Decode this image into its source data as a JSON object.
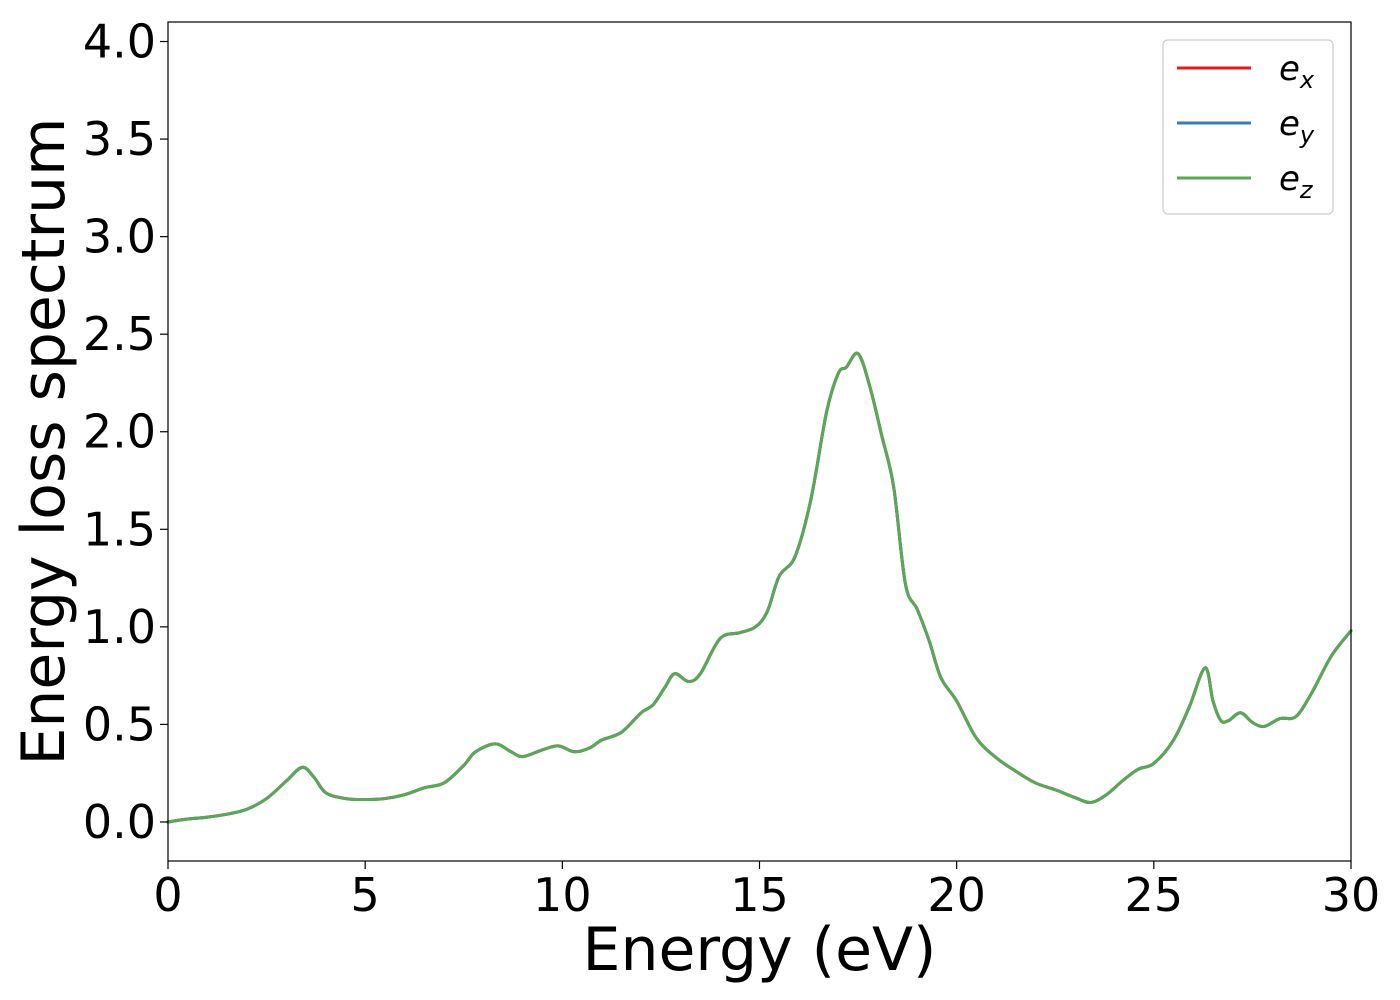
{
  "chart_data": {
    "type": "line",
    "title": "",
    "xlabel": "Energy (eV)",
    "ylabel": "Energy loss spectrum",
    "xlim": [
      0,
      30
    ],
    "ylim": [
      -0.2,
      4.1
    ],
    "xticks": [
      "0",
      "5",
      "10",
      "15",
      "20",
      "25",
      "30"
    ],
    "yticks": [
      "0.0",
      "0.5",
      "1.0",
      "1.5",
      "2.0",
      "2.5",
      "3.0",
      "3.5",
      "4.0"
    ],
    "grid": false,
    "legend_position": "top-right",
    "x": [
      0,
      0.5,
      1.0,
      1.5,
      2.0,
      2.5,
      3.0,
      3.4,
      3.7,
      4.0,
      4.5,
      5.0,
      5.5,
      6.0,
      6.5,
      7.0,
      7.5,
      7.8,
      8.3,
      8.7,
      9.0,
      9.5,
      9.9,
      10.3,
      10.7,
      11.0,
      11.5,
      12.0,
      12.3,
      12.6,
      12.85,
      13.2,
      13.5,
      14.0,
      14.5,
      14.9,
      15.2,
      15.5,
      15.9,
      16.3,
      16.7,
      17.0,
      17.2,
      17.5,
      17.8,
      18.1,
      18.4,
      18.7,
      19.0,
      19.3,
      19.6,
      20.0,
      20.5,
      21.0,
      21.5,
      22.0,
      22.5,
      23.0,
      23.4,
      23.8,
      24.2,
      24.6,
      25.0,
      25.5,
      25.9,
      26.3,
      26.5,
      26.7,
      26.9,
      27.2,
      27.5,
      27.8,
      28.2,
      28.6,
      29.0,
      29.5,
      30.0
    ],
    "series": [
      {
        "name": "e_x",
        "color": "#e41a1c",
        "values": [
          0.0,
          0.015,
          0.025,
          0.04,
          0.065,
          0.12,
          0.21,
          0.28,
          0.23,
          0.15,
          0.12,
          0.115,
          0.12,
          0.14,
          0.175,
          0.2,
          0.29,
          0.36,
          0.4,
          0.36,
          0.335,
          0.37,
          0.39,
          0.36,
          0.38,
          0.42,
          0.46,
          0.56,
          0.6,
          0.69,
          0.76,
          0.72,
          0.76,
          0.94,
          0.97,
          1.0,
          1.08,
          1.26,
          1.36,
          1.65,
          2.1,
          2.3,
          2.33,
          2.4,
          2.23,
          1.98,
          1.72,
          1.22,
          1.09,
          0.93,
          0.74,
          0.62,
          0.43,
          0.33,
          0.26,
          0.2,
          0.165,
          0.125,
          0.1,
          0.14,
          0.21,
          0.27,
          0.3,
          0.42,
          0.59,
          0.79,
          0.62,
          0.52,
          0.52,
          0.56,
          0.51,
          0.49,
          0.53,
          0.54,
          0.66,
          0.85,
          0.98
        ]
      },
      {
        "name": "e_y",
        "color": "#377eb8",
        "values": [
          0.0,
          0.015,
          0.025,
          0.04,
          0.065,
          0.12,
          0.21,
          0.28,
          0.23,
          0.15,
          0.12,
          0.115,
          0.12,
          0.14,
          0.175,
          0.2,
          0.29,
          0.36,
          0.4,
          0.36,
          0.335,
          0.37,
          0.39,
          0.36,
          0.38,
          0.42,
          0.46,
          0.56,
          0.6,
          0.69,
          0.76,
          0.72,
          0.76,
          0.94,
          0.97,
          1.0,
          1.08,
          1.26,
          1.36,
          1.65,
          2.1,
          2.3,
          2.33,
          2.4,
          2.23,
          1.98,
          1.72,
          1.22,
          1.09,
          0.93,
          0.74,
          0.62,
          0.43,
          0.33,
          0.26,
          0.2,
          0.165,
          0.125,
          0.1,
          0.14,
          0.21,
          0.27,
          0.3,
          0.42,
          0.59,
          0.79,
          0.62,
          0.52,
          0.52,
          0.56,
          0.51,
          0.49,
          0.53,
          0.54,
          0.66,
          0.85,
          0.98
        ]
      },
      {
        "name": "e_z",
        "color": "#5aa755",
        "values": [
          0.0,
          0.015,
          0.025,
          0.04,
          0.065,
          0.12,
          0.21,
          0.28,
          0.23,
          0.15,
          0.12,
          0.115,
          0.12,
          0.14,
          0.175,
          0.2,
          0.29,
          0.36,
          0.4,
          0.36,
          0.335,
          0.37,
          0.39,
          0.36,
          0.38,
          0.42,
          0.46,
          0.56,
          0.6,
          0.69,
          0.76,
          0.72,
          0.76,
          0.94,
          0.97,
          1.0,
          1.08,
          1.26,
          1.36,
          1.65,
          2.1,
          2.3,
          2.33,
          2.4,
          2.23,
          1.98,
          1.72,
          1.22,
          1.09,
          0.93,
          0.74,
          0.62,
          0.43,
          0.33,
          0.26,
          0.2,
          0.165,
          0.125,
          0.1,
          0.14,
          0.21,
          0.27,
          0.3,
          0.42,
          0.59,
          0.79,
          0.62,
          0.52,
          0.52,
          0.56,
          0.51,
          0.49,
          0.53,
          0.54,
          0.66,
          0.85,
          0.98
        ]
      }
    ],
    "legend": [
      {
        "base": "e",
        "sub": "x",
        "color": "#e41a1c"
      },
      {
        "base": "e",
        "sub": "y",
        "color": "#377eb8"
      },
      {
        "base": "e",
        "sub": "z",
        "color": "#5aa755"
      }
    ]
  }
}
